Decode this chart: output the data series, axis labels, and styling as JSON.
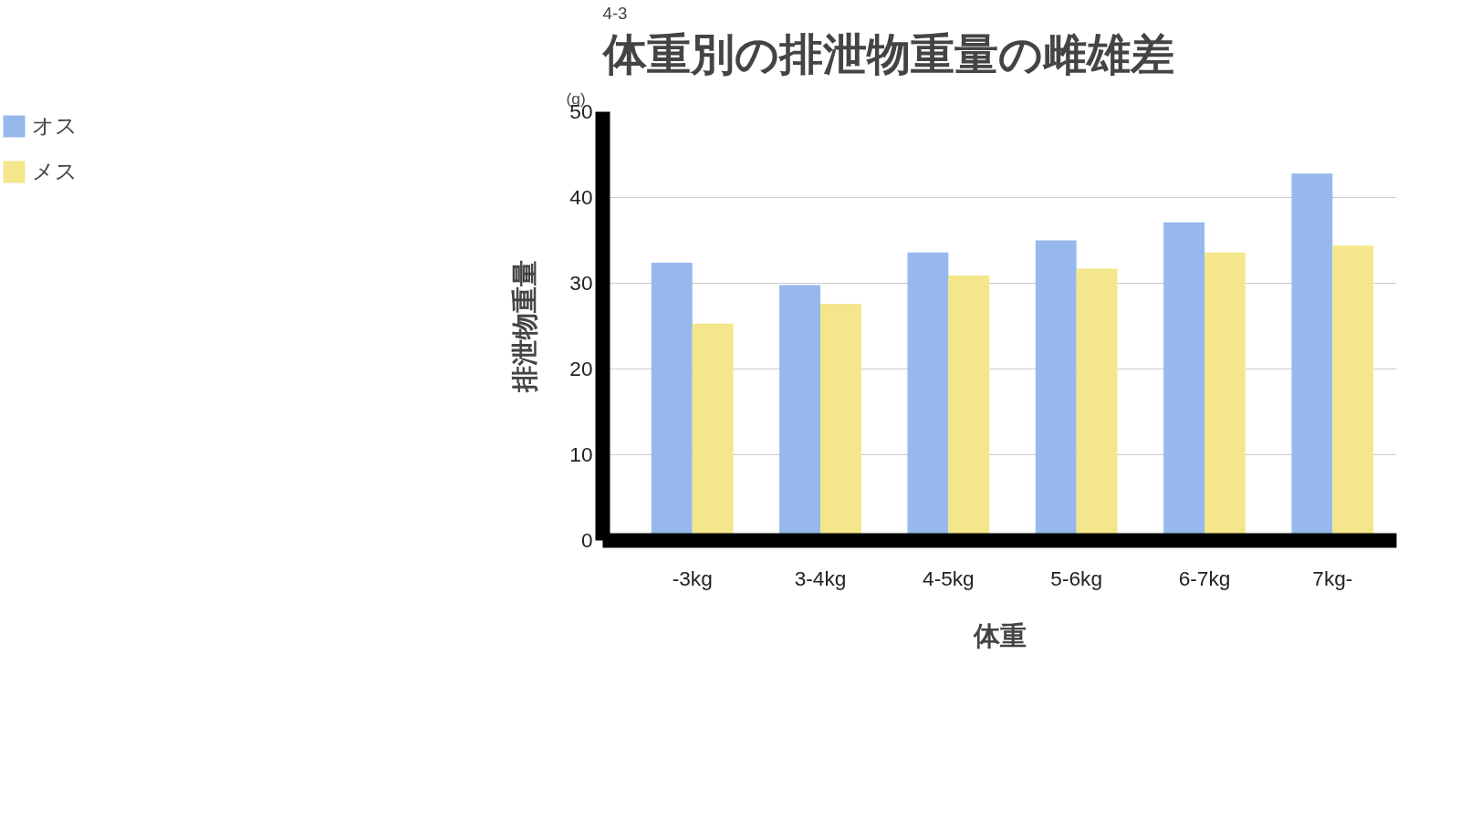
{
  "chart_data": {
    "type": "bar",
    "title": "体重別の排泄物重量の雌雄差",
    "xlabel": "体重",
    "ylabel": "排泄物重量",
    "annotations": [
      "4-3",
      "(g)"
    ],
    "categories": [
      "-3kg",
      "3-4kg",
      "4-5kg",
      "5-6kg",
      "6-7kg",
      "7kg-"
    ],
    "series": [
      {
        "name": "オス",
        "color": "#96b8ec",
        "values": [
          32.4,
          29.8,
          33.6,
          35.0,
          37.1,
          42.8
        ]
      },
      {
        "name": "メス",
        "color": "#f4e68a",
        "values": [
          25.3,
          27.6,
          30.9,
          31.7,
          33.6,
          34.4
        ]
      }
    ],
    "ylim": [
      0,
      50
    ],
    "yticks": [
      0,
      10,
      20,
      30,
      40,
      50
    ],
    "grid": "y",
    "legend": "left"
  }
}
